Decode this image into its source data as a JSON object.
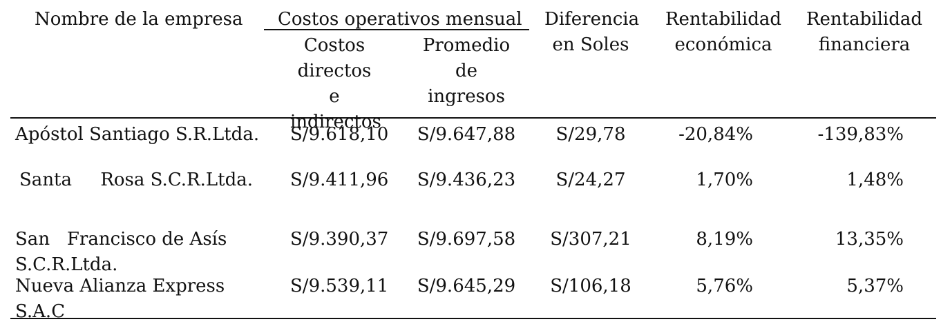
{
  "header": {
    "company": "Nombre de la empresa",
    "costs_group": "Costos operativos mensual",
    "costs_direct": "Costos directos e indirectos",
    "avg_income": "Promedio de ingresos",
    "difference": "Diferencia en Soles",
    "econ_return": "Rentabilidad económica",
    "fin_return": "Rentabilidad financiera"
  },
  "rows": [
    {
      "name": "Apóstol Santiago S.R.Ltda.",
      "costs": "S/9.618,10",
      "income": "S/9.647,88",
      "diff": "S/29,78",
      "econ": "-20,84%",
      "fin": "-139,83%"
    },
    {
      "name": "Santa     Rosa S.C.R.Ltda.",
      "costs": "S/9.411,96",
      "income": "S/9.436,23",
      "diff": "S/24,27",
      "econ": "1,70%",
      "fin": "1,48%"
    },
    {
      "name": "San   Francisco de Asís S.C.R.Ltda.",
      "costs": "S/9.390,37",
      "income": "S/9.697,58",
      "diff": "S/307,21",
      "econ": "8,19%",
      "fin": "13,35%"
    },
    {
      "name": "Nueva Alianza Express S.A.C",
      "costs": "S/9.539,11",
      "income": "S/9.645,29",
      "diff": "S/106,18",
      "econ": "5,76%",
      "fin": "5,37%"
    }
  ]
}
